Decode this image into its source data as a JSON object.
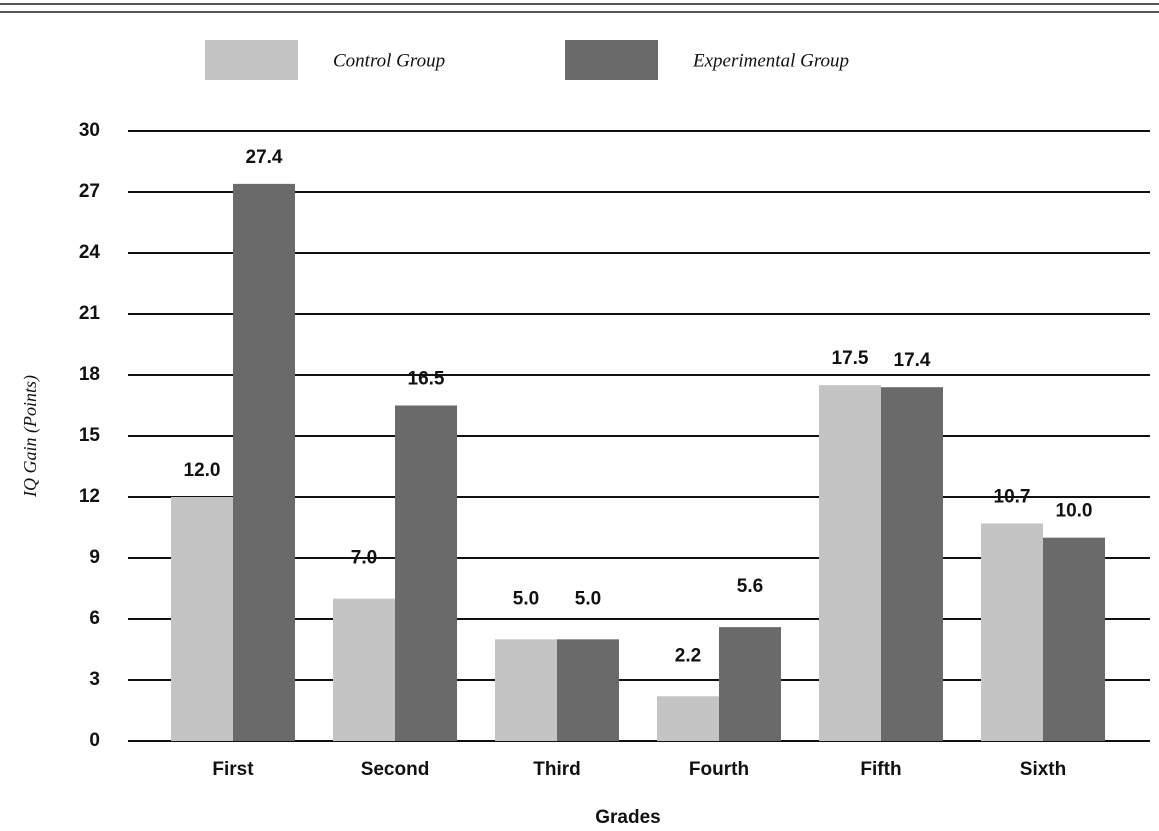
{
  "chart_data": {
    "type": "bar",
    "categories": [
      "First",
      "Second",
      "Third",
      "Fourth",
      "Fifth",
      "Sixth"
    ],
    "series": [
      {
        "name": "Control Group",
        "color": "#c4c4c4",
        "values": [
          12.0,
          7.0,
          5.0,
          2.2,
          17.5,
          10.7
        ],
        "value_labels": [
          "12.0",
          "7.0",
          "5.0",
          "2.2",
          "17.5",
          "10.7"
        ]
      },
      {
        "name": "Experimental Group",
        "color": "#6a6a6a",
        "values": [
          27.4,
          16.5,
          5.0,
          5.6,
          17.4,
          10.0
        ],
        "value_labels": [
          "27.4",
          "16.5",
          "5.0",
          "5.6",
          "17.4",
          "10.0"
        ]
      }
    ],
    "ylim": [
      0,
      30
    ],
    "yticks": [
      0,
      3,
      6,
      9,
      12,
      15,
      18,
      21,
      24,
      27,
      30
    ],
    "y_label": "IQ Gain (Points)",
    "x_label": "Grades",
    "grid": true
  }
}
